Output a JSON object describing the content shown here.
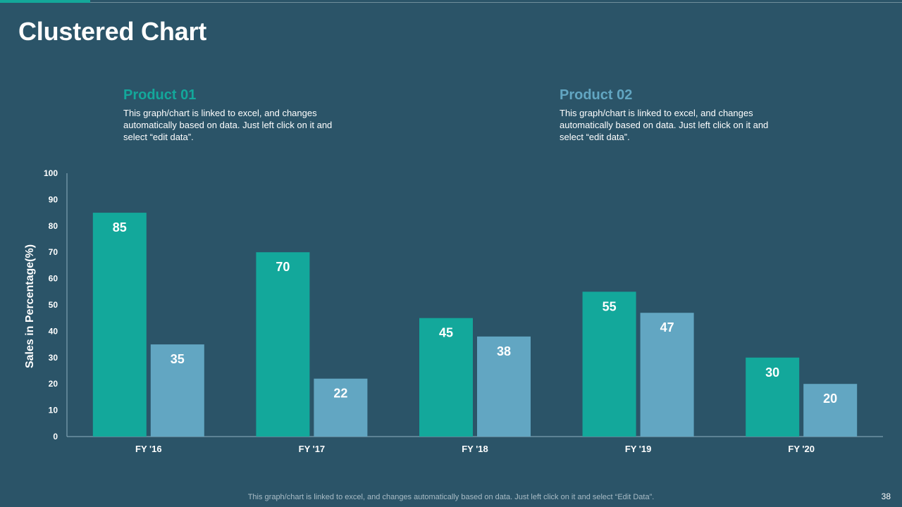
{
  "slide": {
    "title": "Clustered Chart",
    "footer_note": "This graph/chart is linked to excel,  and changes automatically based on data. Just left click on it and select “Edit Data”.",
    "page_number": "38"
  },
  "legend": [
    {
      "name": "Product 01",
      "color": "#13a89b",
      "description": "This graph/chart is linked to excel,  and changes automatically based on data. Just left click on it and select “edit data”."
    },
    {
      "name": "Product 02",
      "color": "#62a6c2",
      "description": "This graph/chart is linked to excel,  and changes automatically based on data. Just left click on it and select “edit data”."
    }
  ],
  "chart_data": {
    "type": "bar",
    "title": "",
    "xlabel": "",
    "ylabel": "Sales in Percentage(%)",
    "ylim": [
      0,
      100
    ],
    "yticks": [
      0,
      10,
      20,
      30,
      40,
      50,
      60,
      70,
      80,
      90,
      100
    ],
    "grid": false,
    "categories": [
      "FY '16",
      "FY '17",
      "FY '18",
      "FY '19",
      "FY '20"
    ],
    "series": [
      {
        "name": "Product 01",
        "color": "#13a89b",
        "values": [
          85,
          70,
          45,
          55,
          30
        ]
      },
      {
        "name": "Product 02",
        "color": "#62a6c2",
        "values": [
          35,
          22,
          38,
          47,
          20
        ]
      }
    ]
  }
}
